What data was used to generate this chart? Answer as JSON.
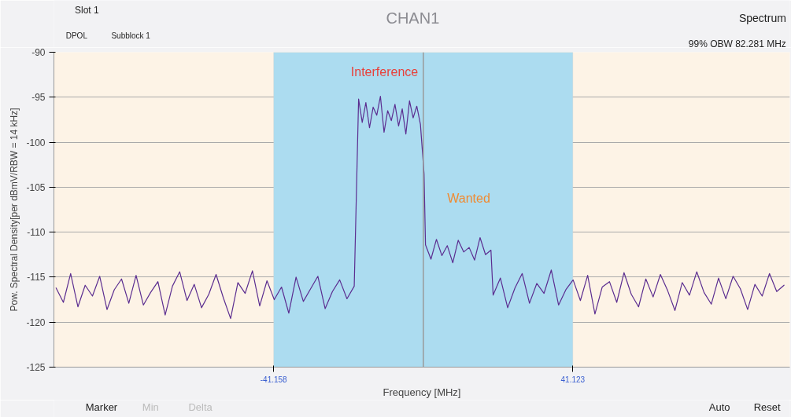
{
  "chart_data": {
    "type": "line",
    "title": "CHAN1",
    "xlabel": "Frequency [MHz]",
    "ylabel": "Pow. Spectral Density[per dBmV/RBW = 14 kHz]",
    "xlim": [
      -101.6,
      100.8
    ],
    "ylim": [
      -125,
      -90
    ],
    "yticks": [
      -125,
      -120,
      -115,
      -110,
      -105,
      -100,
      -95,
      -90
    ],
    "xticks": [
      -41.158,
      41.123
    ],
    "grid": "y",
    "marker": "none",
    "line_style": "solid",
    "bands": [
      {
        "axis": "x",
        "from": -41.158,
        "to": 41.123,
        "color": "#acdcf0"
      }
    ],
    "ref_lines": [
      {
        "axis": "x",
        "value": 0,
        "color": "#999999"
      }
    ],
    "annotations": [
      "Interference",
      "Wanted",
      "Spectrum",
      "99% OBW 82.281 MHz",
      "Slot 1",
      "DPOL",
      "Subblock 1",
      "Marker",
      "Min",
      "Delta",
      "Auto",
      "Reset"
    ],
    "series": [
      {
        "color": "#5b2d90",
        "x": [
          -101,
          -99,
          -97,
          -95,
          -93,
          -91,
          -89,
          -87,
          -85,
          -83,
          -81,
          -79,
          -77,
          -75,
          -73,
          -71,
          -69,
          -67,
          -65,
          -63,
          -61,
          -59,
          -57,
          -55,
          -53,
          -51,
          -49,
          -47,
          -45,
          -43,
          -41,
          -39,
          -37,
          -35,
          -33,
          -31,
          -29,
          -27,
          -25,
          -23,
          -21,
          -19,
          -17.8,
          -16.8,
          -15.8,
          -14.8,
          -13.8,
          -12.8,
          -11.8,
          -10.8,
          -9.8,
          -8.8,
          -7.8,
          -6.8,
          -5.8,
          -4.8,
          -3.8,
          -2.8,
          -1.8,
          -0.8,
          0.2,
          0.6,
          2.1,
          3.6,
          5.1,
          6.6,
          8.1,
          9.6,
          11.1,
          12.6,
          14.1,
          15.6,
          17.1,
          18.6,
          19.2,
          21.2,
          23.2,
          25.2,
          27.2,
          29.2,
          31.2,
          33.2,
          35.2,
          37.2,
          39.2,
          41.2,
          43.2,
          45.2,
          47.2,
          49.2,
          51.2,
          53.2,
          55.2,
          57.2,
          59.2,
          61.2,
          63.2,
          65.2,
          67.2,
          69.2,
          71.2,
          73.2,
          75.2,
          77.2,
          79.2,
          81.2,
          83.2,
          85.2,
          87.2,
          89.2,
          91.2,
          93.2,
          95.2,
          97.2,
          99.2
        ],
        "values": [
          -116.2,
          -117.8,
          -114.6,
          -118.3,
          -115.9,
          -117.1,
          -114.9,
          -118.6,
          -116.4,
          -115.2,
          -117.9,
          -114.8,
          -118.1,
          -116.7,
          -115.5,
          -119.2,
          -116.0,
          -114.4,
          -117.6,
          -115.8,
          -118.4,
          -116.9,
          -114.7,
          -117.3,
          -119.6,
          -115.6,
          -116.8,
          -114.3,
          -118.2,
          -115.4,
          -117.5,
          -116.1,
          -119.0,
          -115.0,
          -117.7,
          -116.3,
          -114.9,
          -118.5,
          -116.6,
          -115.3,
          -117.4,
          -116.0,
          -95.2,
          -97.8,
          -95.6,
          -98.4,
          -96.1,
          -97.0,
          -94.9,
          -98.9,
          -96.5,
          -97.6,
          -95.8,
          -98.2,
          -96.3,
          -99.1,
          -95.4,
          -97.3,
          -96.0,
          -98.0,
          -103.5,
          -111.4,
          -113.0,
          -110.8,
          -112.6,
          -111.5,
          -113.4,
          -110.9,
          -112.2,
          -111.7,
          -113.1,
          -110.6,
          -112.5,
          -112.0,
          -117.0,
          -115.1,
          -118.4,
          -116.2,
          -114.6,
          -117.9,
          -115.7,
          -116.8,
          -114.2,
          -118.1,
          -116.4,
          -115.3,
          -117.6,
          -114.8,
          -119.1,
          -116.1,
          -115.5,
          -117.8,
          -114.5,
          -116.9,
          -118.3,
          -115.2,
          -117.2,
          -114.7,
          -116.5,
          -118.7,
          -115.6,
          -117.0,
          -114.4,
          -116.7,
          -118.0,
          -115.1,
          -117.4,
          -114.9,
          -116.3,
          -118.6,
          -115.8,
          -117.1,
          -114.6,
          -116.6,
          -115.9
        ]
      }
    ]
  }
}
